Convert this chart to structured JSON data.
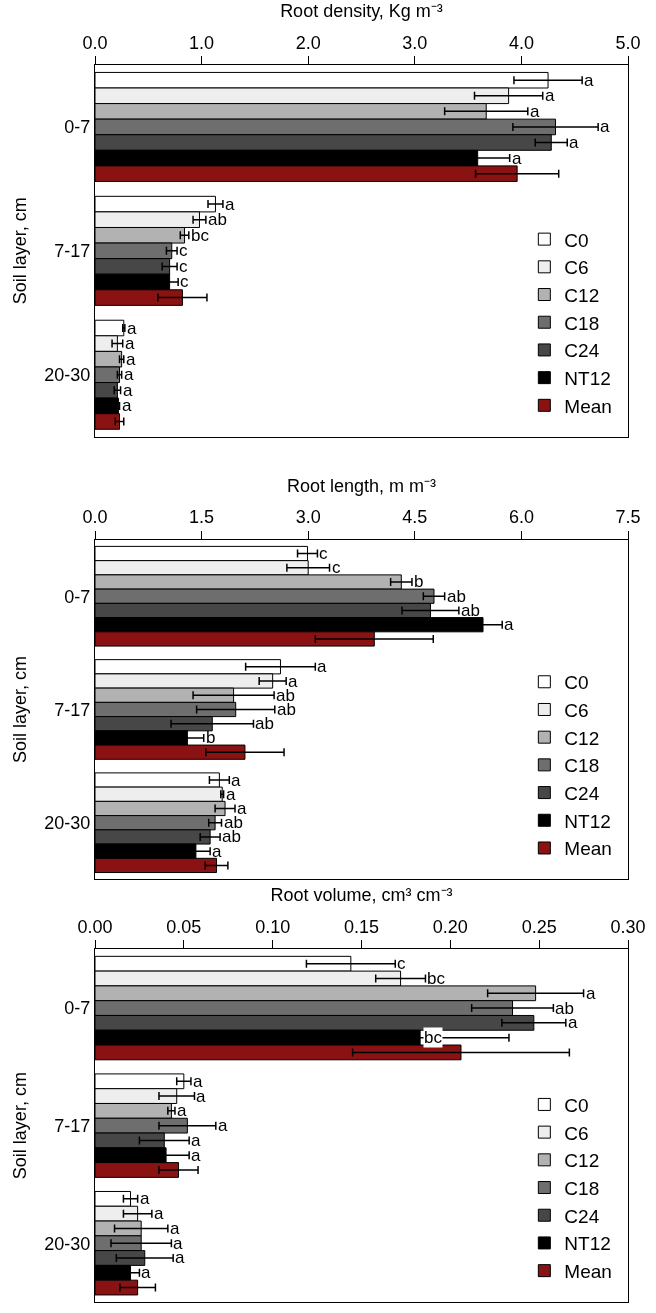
{
  "chart_data": [
    {
      "type": "bar",
      "orientation": "horizontal",
      "xlabel": "Root density, Kg m⁻³",
      "ylabel": "Soil layer, cm",
      "categories": [
        "0-7",
        "7-17",
        "20-30"
      ],
      "xlim": [
        0,
        5
      ],
      "xticks": [
        {
          "value": 0,
          "label": "0.0"
        },
        {
          "value": 1,
          "label": "1.0"
        },
        {
          "value": 2,
          "label": "2.0"
        },
        {
          "value": 3,
          "label": "3.0"
        },
        {
          "value": 4,
          "label": "4.0"
        },
        {
          "value": 5,
          "label": "5.0"
        }
      ],
      "legend": "bottom right",
      "series": [
        {
          "name": "C0",
          "color": "#ffffff",
          "values": [
            4.25,
            1.13,
            0.27
          ],
          "errors": [
            0.32,
            0.07,
            0.01
          ],
          "value_labels": [
            "a",
            "a",
            "a"
          ]
        },
        {
          "name": "C6",
          "color": "#eeeeee",
          "values": [
            3.88,
            0.98,
            0.21
          ],
          "errors": [
            0.32,
            0.06,
            0.05
          ],
          "value_labels": [
            "a",
            "ab",
            "a"
          ]
        },
        {
          "name": "C12",
          "color": "#b2b2b2",
          "values": [
            3.67,
            0.84,
            0.25
          ],
          "errors": [
            0.39,
            0.04,
            0.02
          ],
          "value_labels": [
            "a",
            "bc",
            "a"
          ]
        },
        {
          "name": "C18",
          "color": "#6e6e6e",
          "values": [
            4.32,
            0.72,
            0.23
          ],
          "errors": [
            0.4,
            0.05,
            0.02
          ],
          "value_labels": [
            "a",
            "c",
            "a"
          ]
        },
        {
          "name": "C24",
          "color": "#474747",
          "values": [
            4.28,
            0.7,
            0.21
          ],
          "errors": [
            0.15,
            0.07,
            0.03
          ],
          "value_labels": [
            "a",
            "c",
            "a"
          ]
        },
        {
          "name": "NT12",
          "color": "#000000",
          "values": [
            3.59,
            0.7,
            0.22
          ],
          "errors": [
            0.3,
            0.08,
            0.01
          ],
          "value_labels": [
            "a",
            "c",
            "a"
          ]
        },
        {
          "name": "Mean",
          "color": "#8b1212",
          "values": [
            3.96,
            0.82,
            0.23
          ],
          "errors": [
            0.39,
            0.23,
            0.04
          ]
        }
      ]
    },
    {
      "type": "bar",
      "orientation": "horizontal",
      "xlabel": "Root length, m m⁻³",
      "ylabel": "Soil layer, cm",
      "categories": [
        "0-7",
        "7-17",
        "20-30"
      ],
      "xlim": [
        0,
        7.5
      ],
      "xticks": [
        {
          "value": 0,
          "label": "0.0"
        },
        1.5,
        {
          "value": 3,
          "label": "3.0"
        },
        4.5,
        {
          "value": 6,
          "label": "6.0"
        },
        7.5
      ],
      "legend": "bottom right",
      "series": [
        {
          "name": "C0",
          "color": "#ffffff",
          "values": [
            2.99,
            2.61,
            1.75
          ],
          "errors": [
            0.14,
            0.49,
            0.14
          ],
          "value_labels": [
            "c",
            "a",
            "a"
          ]
        },
        {
          "name": "C6",
          "color": "#eeeeee",
          "values": [
            3.0,
            2.5,
            1.79
          ],
          "errors": [
            0.3,
            0.19,
            0.02
          ],
          "value_labels": [
            "c",
            "a",
            "a"
          ]
        },
        {
          "name": "C12",
          "color": "#b2b2b2",
          "values": [
            4.31,
            1.95,
            1.83
          ],
          "errors": [
            0.15,
            0.57,
            0.14
          ],
          "value_labels": [
            "b",
            "ab",
            "a"
          ]
        },
        {
          "name": "C18",
          "color": "#6e6e6e",
          "values": [
            4.77,
            1.98,
            1.69
          ],
          "errors": [
            0.15,
            0.55,
            0.09
          ],
          "value_labels": [
            "ab",
            "ab",
            "ab"
          ]
        },
        {
          "name": "C24",
          "color": "#474747",
          "values": [
            4.72,
            1.65,
            1.62
          ],
          "errors": [
            0.4,
            0.58,
            0.14
          ],
          "value_labels": [
            "ab",
            "ab",
            "ab"
          ]
        },
        {
          "name": "NT12",
          "color": "#000000",
          "values": [
            5.46,
            1.3,
            1.42
          ],
          "errors": [
            0.27,
            0.23,
            0.2
          ],
          "value_labels": [
            "a",
            "b",
            "a"
          ]
        },
        {
          "name": "Mean",
          "color": "#8b1212",
          "values": [
            3.93,
            2.11,
            1.71
          ],
          "errors": [
            0.83,
            0.55,
            0.16
          ]
        }
      ]
    },
    {
      "type": "bar",
      "orientation": "horizontal",
      "xlabel": "Root volume, cm³ cm⁻³",
      "ylabel": "Soil layer, cm",
      "categories": [
        "0-7",
        "7-17",
        "20-30"
      ],
      "xlim": [
        0,
        0.3
      ],
      "xticks": [
        {
          "value": 0,
          "label": "0.00"
        },
        0.05,
        {
          "value": 0.1,
          "label": "0.10"
        },
        0.15,
        {
          "value": 0.2,
          "label": "0.20"
        },
        0.25,
        {
          "value": 0.3,
          "label": "0.30"
        }
      ],
      "legend": "bottom right",
      "series": [
        {
          "name": "C0",
          "color": "#ffffff",
          "values": [
            0.144,
            0.05,
            0.02
          ],
          "errors": [
            0.025,
            0.004,
            0.004
          ],
          "value_labels": [
            "c",
            "a",
            "a"
          ]
        },
        {
          "name": "C6",
          "color": "#eeeeee",
          "values": [
            0.172,
            0.046,
            0.024
          ],
          "errors": [
            0.014,
            0.01,
            0.008
          ],
          "value_labels": [
            "bc",
            "a",
            "a"
          ]
        },
        {
          "name": "C12",
          "color": "#b2b2b2",
          "values": [
            0.248,
            0.043,
            0.026
          ],
          "errors": [
            0.027,
            0.002,
            0.015
          ],
          "value_labels": [
            "a",
            "a",
            "a"
          ]
        },
        {
          "name": "C18",
          "color": "#6e6e6e",
          "values": [
            0.235,
            0.052,
            0.026
          ],
          "errors": [
            0.023,
            0.016,
            0.017
          ],
          "value_labels": [
            "ab",
            "a",
            "a"
          ]
        },
        {
          "name": "C24",
          "color": "#474747",
          "values": [
            0.247,
            0.039,
            0.028
          ],
          "errors": [
            0.018,
            0.014,
            0.016
          ],
          "value_labels": [
            "a",
            "a",
            "a"
          ]
        },
        {
          "name": "NT12",
          "color": "#000000",
          "values": [
            0.183,
            0.04,
            0.02
          ],
          "errors": [
            0.05,
            0.013,
            0.005
          ],
          "value_labels": [
            "bc",
            "a",
            "a"
          ]
        },
        {
          "name": "Mean",
          "color": "#8b1212",
          "values": [
            0.206,
            0.047,
            0.024
          ],
          "errors": [
            0.061,
            0.011,
            0.01
          ]
        }
      ]
    }
  ]
}
